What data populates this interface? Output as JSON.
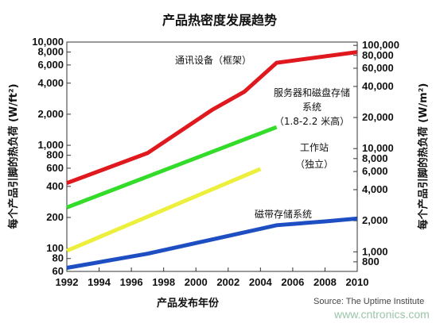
{
  "chart_data": {
    "type": "line",
    "title": "产品热密度发展趋势",
    "xlabel": "产品发布年份",
    "ylabel_left": "每个产品引脚的热负荷 (W/ft²)",
    "ylabel_right": "每个产品引脚的热负荷 (W/m²)",
    "x_ticks": [
      "1992",
      "1994",
      "1996",
      "1998",
      "2000",
      "2002",
      "2004",
      "2006",
      "2008",
      "2010"
    ],
    "xlim": [
      1992,
      2010
    ],
    "y_scale": "log",
    "ylim_left": [
      60,
      10000
    ],
    "ylim_right": [
      645.8,
      107640
    ],
    "y_ticks_left": [
      "10,000",
      "8,000",
      "6,000",
      "4,000",
      "2,000",
      "1,000",
      "800",
      "600",
      "400",
      "200",
      "100",
      "80",
      "60"
    ],
    "y_ticks_left_values": [
      10000,
      8000,
      6000,
      4000,
      2000,
      1000,
      800,
      600,
      400,
      200,
      100,
      80,
      60
    ],
    "y_ticks_right": [
      "100,000",
      "80,000",
      "60,000",
      "40,000",
      "20,000",
      "10,000",
      "8,000",
      "6,000",
      "4,000",
      "2,000",
      "1,000",
      "800"
    ],
    "y_ticks_right_values": [
      100000,
      80000,
      60000,
      40000,
      20000,
      10000,
      8000,
      6000,
      4000,
      2000,
      1000,
      800
    ],
    "series": [
      {
        "name": "通讯设备（框架）",
        "color": "#e0191f",
        "points": [
          [
            1992,
            430
          ],
          [
            1997,
            840
          ],
          [
            2001,
            2200
          ],
          [
            2003,
            3300
          ],
          [
            2005,
            6300
          ],
          [
            2010,
            8000
          ]
        ]
      },
      {
        "name": "服务器和磁盘存储系统（1.8-2.2 米高）",
        "color": "#32dc28",
        "points": [
          [
            1992,
            250
          ],
          [
            2005,
            1500
          ]
        ]
      },
      {
        "name": "工作站（独立）",
        "color": "#ecef3c",
        "points": [
          [
            1992,
            95
          ],
          [
            2004,
            590
          ]
        ]
      },
      {
        "name": "磁带存储系统",
        "color": "#1d4ec2",
        "points": [
          [
            1992,
            65
          ],
          [
            1997,
            89
          ],
          [
            2005,
            168
          ],
          [
            2008,
            183
          ],
          [
            2010,
            195
          ]
        ]
      }
    ],
    "annotations": {
      "comm": "通讯设备（框架）",
      "server_1": "服务器和磁盘存储",
      "server_2": "系统",
      "server_3": "（1.8-2.2 米高）",
      "ws_1": "工作站",
      "ws_2": "（独立）",
      "tape": "磁带存储系统"
    },
    "source": "Source: The Uptime Institute",
    "watermark": "www.cntronics.com"
  }
}
